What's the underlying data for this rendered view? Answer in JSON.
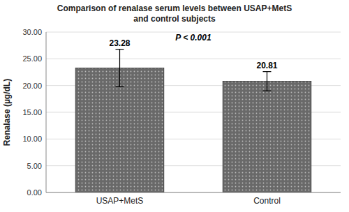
{
  "chart_data": {
    "type": "bar",
    "title": "Comparison of renalase serum levels between USAP+MetS\nand control subjects",
    "ylabel": "Renalase (µg/dL)",
    "annotation": "P < 0.001",
    "categories": [
      "USAP+MetS",
      "Control"
    ],
    "values": [
      23.28,
      20.81
    ],
    "errors": [
      3.5,
      1.8
    ],
    "color": "#696969",
    "ylim": [
      0,
      30
    ],
    "yticks": [
      {
        "value": 0,
        "label": "0.00"
      },
      {
        "value": 5,
        "label": "5.00"
      },
      {
        "value": 10,
        "label": "10.00"
      },
      {
        "value": 15,
        "label": "15.00"
      },
      {
        "value": 20,
        "label": "20.00"
      },
      {
        "value": 25,
        "label": "25.00"
      },
      {
        "value": 30,
        "label": "30.00"
      }
    ],
    "grid": true,
    "data_labels": true
  }
}
